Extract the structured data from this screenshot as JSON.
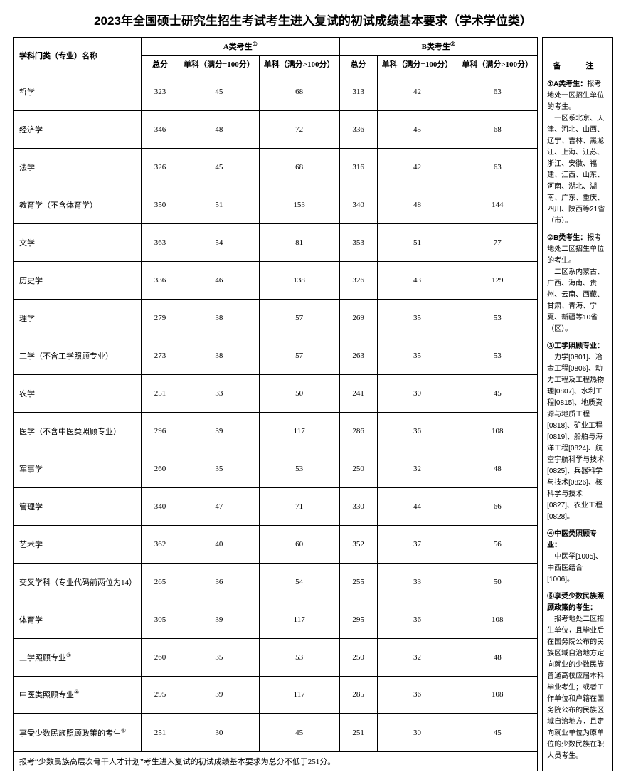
{
  "title": "2023年全国硕士研究生招生考试考生进入复试的初试成绩基本要求（学术学位类）",
  "headers": {
    "subject": "学科门类（专业）名称",
    "groupA": "A类考生",
    "groupB": "B类考生",
    "supA": "①",
    "supB": "②",
    "total": "总分",
    "single100": "单科（满分=100分）",
    "singleOver100": "单科（满分>100分）",
    "remark": "备　注"
  },
  "rows": [
    {
      "name": "哲学",
      "a": [
        323,
        45,
        68
      ],
      "b": [
        313,
        42,
        63
      ]
    },
    {
      "name": "经济学",
      "a": [
        346,
        48,
        72
      ],
      "b": [
        336,
        45,
        68
      ]
    },
    {
      "name": "法学",
      "a": [
        326,
        45,
        68
      ],
      "b": [
        316,
        42,
        63
      ]
    },
    {
      "name": "教育学（不含体育学）",
      "a": [
        350,
        51,
        153
      ],
      "b": [
        340,
        48,
        144
      ]
    },
    {
      "name": "文学",
      "a": [
        363,
        54,
        81
      ],
      "b": [
        353,
        51,
        77
      ]
    },
    {
      "name": "历史学",
      "a": [
        336,
        46,
        138
      ],
      "b": [
        326,
        43,
        129
      ]
    },
    {
      "name": "理学",
      "a": [
        279,
        38,
        57
      ],
      "b": [
        269,
        35,
        53
      ]
    },
    {
      "name": "工学（不含工学照顾专业）",
      "a": [
        273,
        38,
        57
      ],
      "b": [
        263,
        35,
        53
      ]
    },
    {
      "name": "农学",
      "a": [
        251,
        33,
        50
      ],
      "b": [
        241,
        30,
        45
      ]
    },
    {
      "name": "医学（不含中医类照顾专业）",
      "a": [
        296,
        39,
        117
      ],
      "b": [
        286,
        36,
        108
      ]
    },
    {
      "name": "军事学",
      "a": [
        260,
        35,
        53
      ],
      "b": [
        250,
        32,
        48
      ]
    },
    {
      "name": "管理学",
      "a": [
        340,
        47,
        71
      ],
      "b": [
        330,
        44,
        66
      ]
    },
    {
      "name": "艺术学",
      "a": [
        362,
        40,
        60
      ],
      "b": [
        352,
        37,
        56
      ]
    },
    {
      "name": "交叉学科（专业代码前两位为14）",
      "a": [
        265,
        36,
        54
      ],
      "b": [
        255,
        33,
        50
      ]
    },
    {
      "name": "体育学",
      "a": [
        305,
        39,
        117
      ],
      "b": [
        295,
        36,
        108
      ]
    },
    {
      "name": "工学照顾专业",
      "sup": "③",
      "a": [
        260,
        35,
        53
      ],
      "b": [
        250,
        32,
        48
      ]
    },
    {
      "name": "中医类照顾专业",
      "sup": "④",
      "a": [
        295,
        39,
        117
      ],
      "b": [
        285,
        36,
        108
      ]
    },
    {
      "name": "享受少数民族照顾政策的考生",
      "sup": "⑤",
      "a": [
        251,
        30,
        45
      ],
      "b": [
        251,
        30,
        45
      ]
    }
  ],
  "footnote": "报考“少数民族高层次骨干人才计划”考生进入复试的初试成绩基本要求为总分不低于251分。",
  "notes": {
    "n1label": "①A类考生：",
    "n1a": "报考地处一区招生单位的考生。",
    "n1b": "一区系北京、天津、河北、山西、辽宁、吉林、黑龙江、上海、江苏、浙江、安徽、福建、江西、山东、河南、湖北、湖南、广东、重庆、四川、陕西等21省（市）。",
    "n2label": "②B类考生：",
    "n2a": "报考地处二区招生单位的考生。",
    "n2b": "二区系内蒙古、广西、海南、贵州、云南、西藏、甘肃、青海、宁夏、新疆等10省（区）。",
    "n3label": "③工学照顾专业：",
    "n3a": "力学[0801]、冶金工程[0806]、动力工程及工程热物理[0807]、水利工程[0815]、地质资源与地质工程[0818]、矿业工程[0819]、船舶与海洋工程[0824]、航空宇航科学与技术[0825]、兵器科学与技术[0826]、核科学与技术[0827]、农业工程[0828]。",
    "n4label": "④中医类照顾专业：",
    "n4a": "中医学[1005]、中西医结合[1006]。",
    "n5label": "⑤享受少数民族照顾政策的考生：",
    "n5a": "报考地处二区招生单位，且毕业后在国务院公布的民族区域自治地方定向就业的少数民族普通高校应届本科毕业考生；或者工作单位和户籍在国务院公布的民族区域自治地方，且定向就业单位为原单位的少数民族在职人员考生。"
  }
}
